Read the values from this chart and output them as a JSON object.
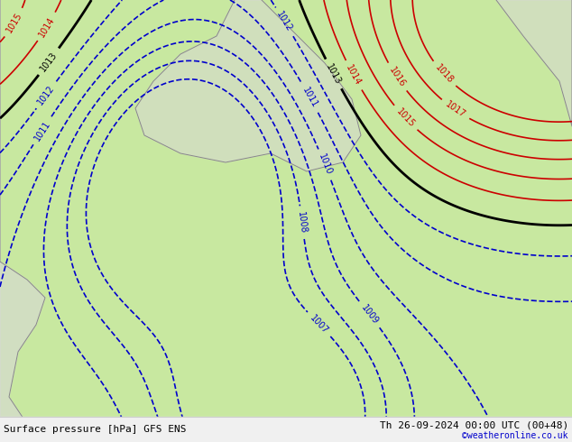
{
  "title_left": "Surface pressure [hPa] GFS ENS",
  "title_right": "Th 26-09-2024 00:00 UTC (00+48)",
  "copyright": "©weatheronline.co.uk",
  "bg_color": "#c8e8a0",
  "land_color": "#c8e8a0",
  "sea_color": "#d8f0b0",
  "border_color": "#aaaaaa",
  "coast_color": "#888888",
  "text_color_bottom": "#000000",
  "copyright_color": "#0000cc",
  "figsize": [
    6.34,
    4.9
  ],
  "dpi": 100
}
